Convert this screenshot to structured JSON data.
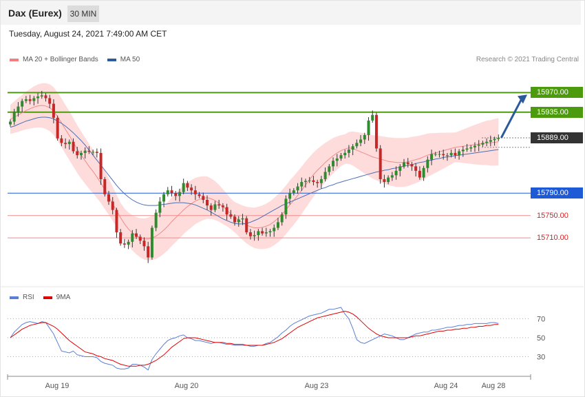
{
  "header": {
    "title": "Dax (Eurex)",
    "timeframe": "30 MIN"
  },
  "date": "Tuesday, August 24, 2021 7:49:00 AM CET",
  "legend": {
    "main": [
      {
        "label": "MA 20 + Bollinger Bands",
        "color": "#f08080"
      },
      {
        "label": "MA 50",
        "color": "#2e5a9c"
      }
    ],
    "rsi": [
      {
        "label": "RSI",
        "color": "#5b7fd6"
      },
      {
        "label": "9MA",
        "color": "#e00000"
      }
    ]
  },
  "credit": "Research © 2021 Trading Central",
  "colors": {
    "bull": "#2e8b2e",
    "bear": "#c62828",
    "band": "#ffdcdc",
    "resistance": "#4c9a0e",
    "support_blue": "#1f5ad6",
    "support_red": "#f08a8a",
    "current": "#333333",
    "arrow": "#2a5a9c"
  },
  "chart_data": [
    {
      "type": "candlestick",
      "ylim": [
        15630,
        16000
      ],
      "x_ticks": [
        "Aug 19",
        "Aug 20",
        "Aug 23",
        "Aug 24",
        "Aug 28"
      ],
      "levels": [
        {
          "value": 15970,
          "label": "15970.00",
          "kind": "resistance"
        },
        {
          "value": 15935,
          "label": "15935.00",
          "kind": "resistance"
        },
        {
          "value": 15889,
          "label": "15889.00",
          "kind": "current"
        },
        {
          "value": 15790,
          "label": "15790.00",
          "kind": "support_blue"
        },
        {
          "value": 15750,
          "label": "15750.00",
          "kind": "support_red"
        },
        {
          "value": 15710,
          "label": "15710.00",
          "kind": "support_red"
        }
      ],
      "close": [
        15918,
        15935,
        15945,
        15955,
        15958,
        15955,
        15960,
        15963,
        15965,
        15960,
        15950,
        15925,
        15888,
        15880,
        15878,
        15882,
        15865,
        15858,
        15862,
        15866,
        15864,
        15864,
        15862,
        15815,
        15788,
        15775,
        15760,
        15720,
        15700,
        15698,
        15703,
        15718,
        15712,
        15705,
        15695,
        15675,
        15728,
        15755,
        15775,
        15788,
        15795,
        15790,
        15785,
        15792,
        15808,
        15800,
        15795,
        15788,
        15785,
        15778,
        15768,
        15760,
        15770,
        15768,
        15765,
        15752,
        15748,
        15738,
        15743,
        15745,
        15720,
        15713,
        15715,
        15722,
        15718,
        15720,
        15722,
        15728,
        15738,
        15752,
        15780,
        15790,
        15795,
        15802,
        15810,
        15812,
        15813,
        15810,
        15808,
        15815,
        15828,
        15838,
        15848,
        15852,
        15858,
        15862,
        15868,
        15874,
        15880,
        15886,
        15894,
        15920,
        15930,
        15870,
        15815,
        15810,
        15818,
        15822,
        15830,
        15838,
        15845,
        15842,
        15838,
        15830,
        15818,
        15835,
        15850,
        15860,
        15860,
        15860,
        15858,
        15858,
        15862,
        15858,
        15865,
        15868,
        15870,
        15872,
        15875,
        15877,
        15880,
        15882,
        15885,
        15887,
        15889
      ],
      "ma20": [
        15922,
        15926,
        15930,
        15934,
        15938,
        15941,
        15944,
        15946,
        15947,
        15946,
        15943,
        15937,
        15927,
        15916,
        15904,
        15893,
        15881,
        15869,
        15858,
        15848,
        15838,
        15829,
        15819,
        15808,
        15796,
        15784,
        15771,
        15759,
        15746,
        15735,
        15726,
        15719,
        15714,
        15710,
        15708,
        15708,
        15710,
        15713,
        15718,
        15724,
        15731,
        15739,
        15746,
        15753,
        15760,
        15766,
        15771,
        15776,
        15779,
        15781,
        15782,
        15780,
        15777,
        15772,
        15766,
        15760,
        15753,
        15747,
        15742,
        15737,
        15733,
        15730,
        15728,
        15728,
        15729,
        15731,
        15734,
        15739,
        15745,
        15752,
        15760,
        15769,
        15777,
        15786,
        15795,
        15805,
        15814,
        15823,
        15831,
        15838,
        15845,
        15851,
        15857,
        15862,
        15866,
        15869,
        15871,
        15870,
        15867,
        15864,
        15861,
        15858,
        15855,
        15853,
        15851,
        15849,
        15847,
        15846,
        15845,
        15845,
        15845,
        15846,
        15848,
        15850,
        15852,
        15855,
        15858,
        15860,
        15862,
        15864,
        15866,
        15868,
        15870,
        15872,
        15873,
        15874,
        15875,
        15876,
        15877,
        15878,
        15879,
        15880,
        15880,
        15881,
        15882
      ],
      "ma50": [
        15908,
        15910,
        15913,
        15916,
        15919,
        15921,
        15923,
        15925,
        15926,
        15926,
        15925,
        15923,
        15919,
        15915,
        15910,
        15904,
        15898,
        15891,
        15884,
        15876,
        15867,
        15858,
        15849,
        15840,
        15831,
        15822,
        15813,
        15804,
        15796,
        15789,
        15783,
        15778,
        15774,
        15771,
        15769,
        15768,
        15768,
        15768,
        15769,
        15770,
        15771,
        15772,
        15773,
        15773,
        15773,
        15772,
        15771,
        15769,
        15766,
        15763,
        15760,
        15756,
        15752,
        15748,
        15744,
        15741,
        15738,
        15736,
        15735,
        15735,
        15736,
        15738,
        15741,
        15744,
        15748,
        15752,
        15756,
        15760,
        15764,
        15768,
        15771,
        15774,
        15777,
        15780,
        15783,
        15786,
        15789,
        15792,
        15795,
        15798,
        15800,
        15803,
        15805,
        15808,
        15810,
        15812,
        15814,
        15816,
        15818,
        15820,
        15822,
        15824,
        15826,
        15828,
        15829,
        15831,
        15832,
        15834,
        15835,
        15837,
        15838,
        15840,
        15841,
        15843,
        15845,
        15846,
        15848,
        15849,
        15851,
        15852,
        15854,
        15855,
        15856,
        15857,
        15858,
        15859,
        15860,
        15861,
        15862,
        15863,
        15864,
        15865,
        15866,
        15867,
        15868
      ],
      "band_half_width": 35
    },
    {
      "type": "line",
      "ylim": [
        10,
        90
      ],
      "y_ticks": [
        70,
        50,
        30
      ],
      "series": [
        {
          "name": "RSI",
          "values": [
            50,
            56,
            60,
            64,
            66,
            67,
            66,
            65,
            67,
            66,
            60,
            54,
            45,
            36,
            35,
            34,
            36,
            32,
            31,
            30,
            30,
            30,
            29,
            25,
            23,
            22,
            21,
            18,
            17,
            17,
            18,
            22,
            22,
            21,
            19,
            16,
            27,
            33,
            38,
            43,
            47,
            49,
            50,
            52,
            53,
            50,
            49,
            47,
            47,
            46,
            45,
            44,
            45,
            45,
            44,
            43,
            43,
            42,
            42,
            42,
            42,
            41,
            41,
            42,
            42,
            44,
            45,
            48,
            51,
            55,
            58,
            62,
            65,
            67,
            69,
            71,
            73,
            74,
            75,
            76,
            78,
            80,
            80,
            81,
            82,
            75,
            70,
            60,
            48,
            45,
            44,
            46,
            48,
            50,
            52,
            54,
            53,
            52,
            50,
            48,
            48,
            50,
            52,
            54,
            55,
            56,
            56,
            58,
            58,
            59,
            60,
            61,
            61,
            62,
            63,
            63,
            64,
            64,
            65,
            65,
            65,
            65,
            66,
            66,
            65
          ]
        },
        {
          "name": "9MA",
          "values": [
            50,
            53,
            56,
            59,
            61,
            63,
            64,
            65,
            66,
            66,
            64,
            62,
            59,
            55,
            51,
            47,
            44,
            41,
            38,
            35,
            34,
            33,
            31,
            30,
            28,
            27,
            26,
            24,
            22,
            21,
            20,
            20,
            20,
            21,
            21,
            22,
            24,
            26,
            29,
            32,
            36,
            40,
            43,
            46,
            49,
            50,
            50,
            50,
            49,
            48,
            47,
            46,
            45,
            45,
            45,
            44,
            44,
            43,
            43,
            43,
            42,
            42,
            42,
            42,
            42,
            43,
            44,
            45,
            47,
            49,
            52,
            55,
            58,
            61,
            63,
            65,
            67,
            69,
            71,
            72,
            73,
            74,
            75,
            76,
            77,
            78,
            77,
            75,
            72,
            68,
            64,
            60,
            57,
            54,
            52,
            51,
            50,
            50,
            50,
            50,
            50,
            50,
            51,
            52,
            52,
            53,
            54,
            55,
            56,
            57,
            57,
            58,
            58,
            59,
            59,
            60,
            60,
            61,
            61,
            62,
            62,
            63,
            63,
            64,
            64
          ]
        }
      ]
    }
  ]
}
